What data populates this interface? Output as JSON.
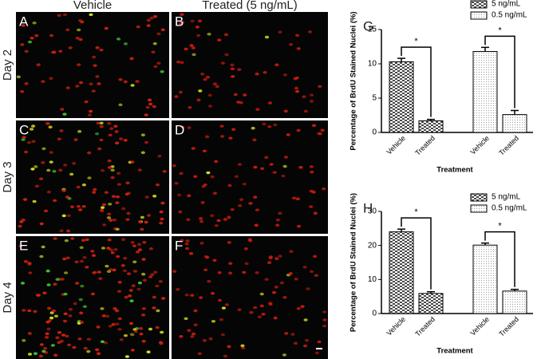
{
  "columns": [
    "Vehicle",
    "Treated (5 ng/mL)"
  ],
  "rows": [
    "Day 2",
    "Day 3",
    "Day 4"
  ],
  "panels": [
    "A",
    "B",
    "C",
    "D",
    "E",
    "F"
  ],
  "chart_data": [
    {
      "type": "bar",
      "panel_label": "G",
      "ylabel": "Percentage of BrdU Stained Nuclei (%)",
      "xlabel": "Treatment",
      "categories": [
        "Vehicle",
        "Treated",
        "Vehicle",
        "Treated"
      ],
      "series": [
        {
          "name": "5 ng/mL",
          "color": "#4a4a4a",
          "values": [
            10.3,
            1.7,
            null,
            null
          ],
          "errors": [
            0.5,
            0.2,
            null,
            null
          ]
        },
        {
          "name": "0.5 ng/mL",
          "color": "#9a9a9a",
          "values": [
            null,
            null,
            11.8,
            2.6
          ],
          "errors": [
            null,
            null,
            0.6,
            0.6
          ]
        }
      ],
      "annotations": [
        "*",
        "*"
      ],
      "ylim": [
        0,
        15
      ],
      "yticks": [
        0,
        5,
        10,
        15
      ],
      "legend": "top-right"
    },
    {
      "type": "bar",
      "panel_label": "H",
      "ylabel": "Percentage of BrdU Stained Nuclei (%)",
      "xlabel": "Treatment",
      "categories": [
        "Vehicle",
        "Treated",
        "Vehicle",
        "Treated"
      ],
      "series": [
        {
          "name": "5 ng/mL",
          "color": "#4a4a4a",
          "values": [
            24,
            5.9,
            null,
            null
          ],
          "errors": [
            0.8,
            0.5,
            null,
            null
          ]
        },
        {
          "name": "0.5 ng/mL",
          "color": "#9a9a9a",
          "values": [
            null,
            null,
            20.1,
            6.6
          ],
          "errors": [
            null,
            null,
            0.6,
            0.5
          ]
        }
      ],
      "annotations": [
        "*",
        "*"
      ],
      "ylim": [
        0,
        30
      ],
      "yticks": [
        0,
        10,
        20,
        30
      ],
      "legend": "top-right"
    }
  ]
}
